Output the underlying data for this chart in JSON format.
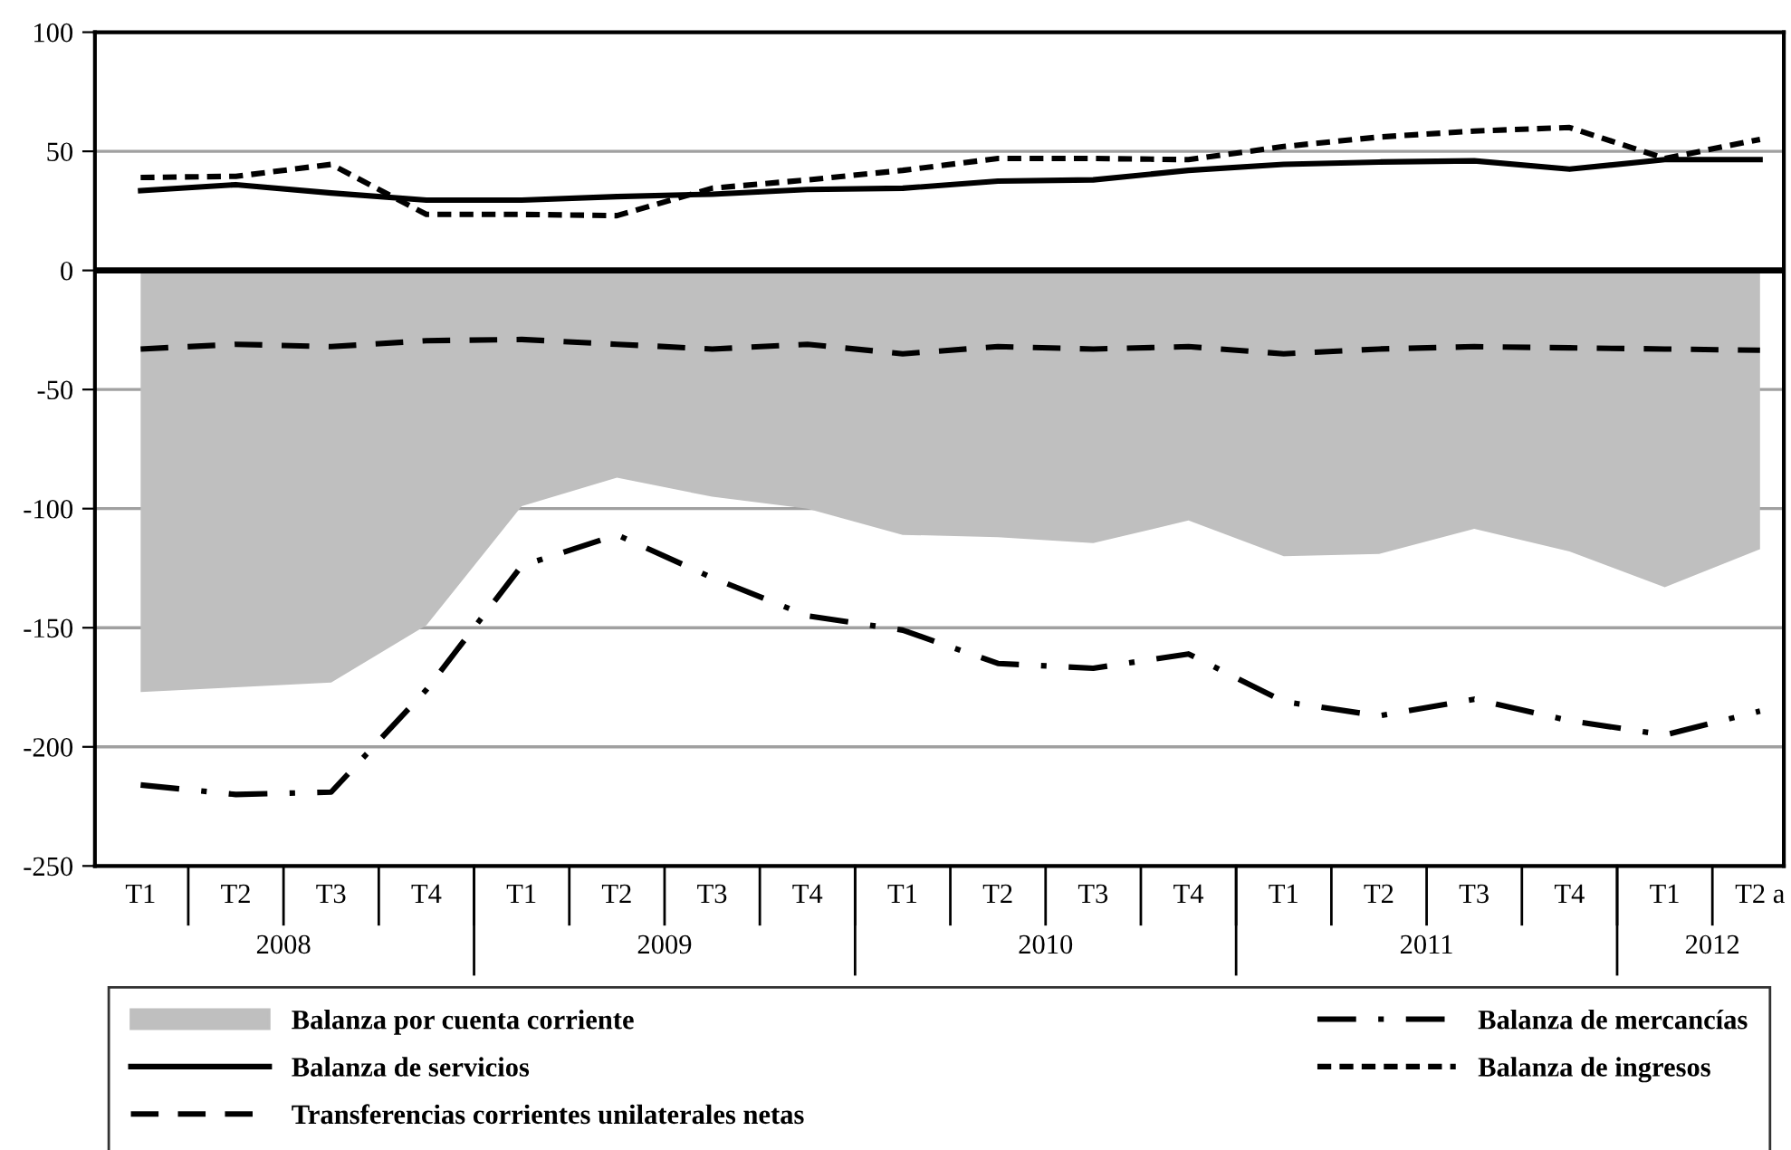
{
  "chart_data": {
    "type": "line",
    "categories": [
      "T1",
      "T2",
      "T3",
      "T4",
      "T1",
      "T2",
      "T3",
      "T4",
      "T1",
      "T2",
      "T3",
      "T4",
      "T1",
      "T2",
      "T3",
      "T4",
      "T1",
      "T2 a"
    ],
    "annotations": [
      "2008",
      "2009",
      "2010",
      "2011",
      "2012"
    ],
    "ylim": [
      -250,
      100
    ],
    "yticks": [
      -250,
      -200,
      -150,
      -100,
      -50,
      0,
      50,
      100
    ],
    "grid": "y",
    "legend": "bottom",
    "marker": "none",
    "ref_lines": [
      {
        "axis": "y",
        "value": 0,
        "color": "#000000"
      }
    ],
    "series": [
      {
        "name": "Balanza por cuenta corriente",
        "type": "area",
        "color": "#bfbfbf",
        "values": [
          -177,
          -175,
          -173,
          -149,
          -99,
          -87,
          -95,
          -100,
          -111,
          -112,
          -114.5,
          -105,
          -120,
          -119,
          -108.5,
          -118,
          -133,
          -117
        ]
      },
      {
        "name": "Balanza de mercancías",
        "line_style": "dashdot",
        "color": "#000000",
        "values": [
          -216,
          -220,
          -219,
          -176,
          -124,
          -111,
          -129,
          -145,
          -151,
          -165,
          -167,
          -161,
          -181,
          -187,
          -180,
          -189,
          -195,
          -185
        ]
      },
      {
        "name": "Balanza de servicios",
        "line_style": "solid",
        "color": "#000000",
        "values": [
          33.5,
          36,
          32.5,
          29.5,
          29.5,
          31,
          32,
          34,
          34.5,
          37.5,
          38,
          42,
          44.5,
          45.5,
          46,
          42.5,
          46.5,
          46.5
        ]
      },
      {
        "name": "Balanza de ingresos",
        "line_style": "dotted",
        "color": "#000000",
        "values": [
          39,
          39.5,
          44.5,
          23.5,
          23.5,
          23,
          34.5,
          38,
          42,
          47,
          47,
          46.5,
          52,
          56,
          58.5,
          60,
          47,
          55
        ]
      },
      {
        "name": "Transferencias corrientes unilaterales netas",
        "line_style": "dashed",
        "color": "#000000",
        "values": [
          -33,
          -31,
          -32,
          -29.5,
          -29,
          -31,
          -33,
          -31,
          -35,
          -32,
          -33,
          -32,
          -35,
          -33,
          -32,
          -32.5,
          -33,
          -33.5
        ]
      }
    ]
  }
}
